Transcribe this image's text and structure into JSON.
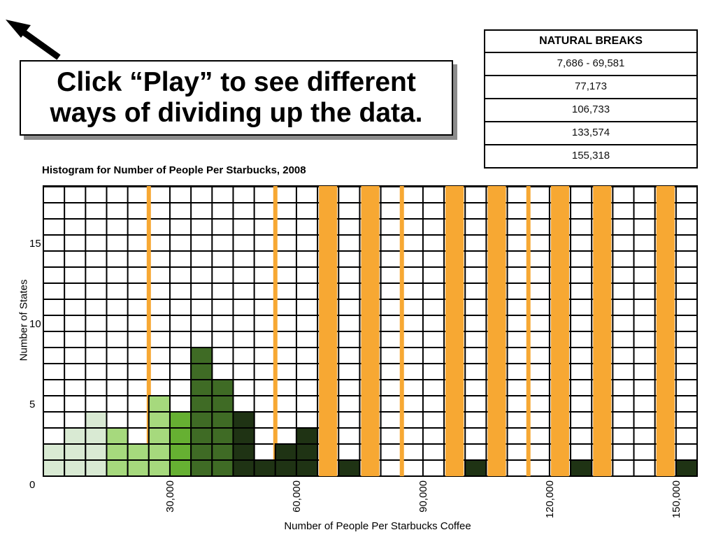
{
  "callout": {
    "line1": "Click “Play” to see different",
    "line2": "ways of dividing up the data."
  },
  "legend": {
    "title": "NATURAL BREAKS",
    "items": [
      "7,686 - 69,581",
      "77,173",
      "106,733",
      "133,574",
      "155,318"
    ]
  },
  "colors": {
    "class1": "#d9ead3",
    "class2": "#a6d97d",
    "class3": "#66b032",
    "class4": "#3f6b25",
    "class5": "#1f3314",
    "break_line": "#f7a833"
  },
  "chart_data": {
    "type": "bar",
    "title": "Histogram for Number of People Per Starbucks, 2008",
    "xlabel": "Number of People Per Starbucks Coffee",
    "ylabel": "Number of States",
    "x_ticks": [
      "30,000",
      "60,000",
      "90,000",
      "120,000",
      "150,000"
    ],
    "y_ticks": [
      "0",
      "5",
      "10",
      "15"
    ],
    "ylim": [
      0,
      18
    ],
    "bin_width": 5000,
    "bins": [
      {
        "x_start": 0,
        "count": 2,
        "class": 1
      },
      {
        "x_start": 5000,
        "count": 3,
        "class": 1
      },
      {
        "x_start": 10000,
        "count": 4,
        "class": 1
      },
      {
        "x_start": 15000,
        "count": 3,
        "class": 2
      },
      {
        "x_start": 20000,
        "count": 2,
        "class": 2
      },
      {
        "x_start": 25000,
        "count": 5,
        "class": 2
      },
      {
        "x_start": 30000,
        "count": 4,
        "class": 3
      },
      {
        "x_start": 35000,
        "count": 8,
        "class": 4
      },
      {
        "x_start": 40000,
        "count": 6,
        "class": 4
      },
      {
        "x_start": 45000,
        "count": 4,
        "class": 5
      },
      {
        "x_start": 50000,
        "count": 1,
        "class": 5
      },
      {
        "x_start": 55000,
        "count": 2,
        "class": 5
      },
      {
        "x_start": 60000,
        "count": 3,
        "class": 5
      },
      {
        "x_start": 70000,
        "count": 1,
        "class": 5
      },
      {
        "x_start": 100000,
        "count": 1,
        "class": 5
      },
      {
        "x_start": 125000,
        "count": 1,
        "class": 5
      },
      {
        "x_start": 150000,
        "count": 1,
        "class": 5
      }
    ],
    "breaks": [
      {
        "x": 25000,
        "style": "thin"
      },
      {
        "x": 55000,
        "style": "thin"
      },
      {
        "x": 65000,
        "x_end": 70000,
        "style": "band"
      },
      {
        "x": 75000,
        "x_end": 80000,
        "style": "band"
      },
      {
        "x": 85000,
        "style": "thin"
      },
      {
        "x": 95000,
        "x_end": 100000,
        "style": "band"
      },
      {
        "x": 105000,
        "x_end": 110000,
        "style": "band"
      },
      {
        "x": 115000,
        "style": "thin"
      },
      {
        "x": 120000,
        "x_end": 125000,
        "style": "band"
      },
      {
        "x": 130000,
        "x_end": 135000,
        "style": "band"
      },
      {
        "x": 145000,
        "x_end": 150000,
        "style": "band"
      }
    ]
  }
}
